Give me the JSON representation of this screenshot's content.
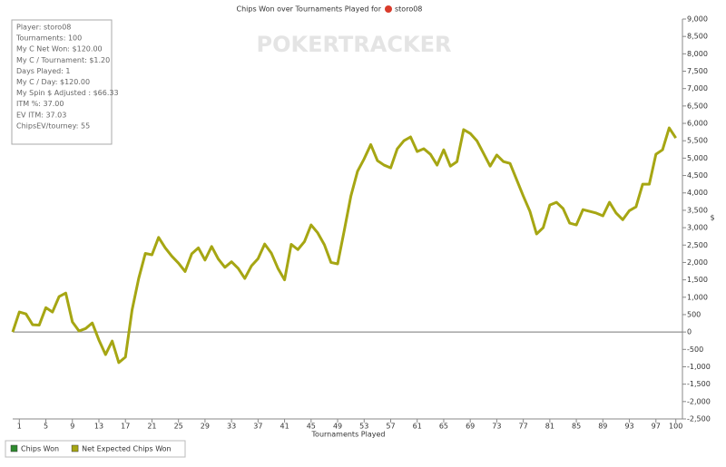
{
  "chart_data": {
    "type": "line",
    "title": "Chips Won over Tournaments Played for",
    "player_tag": "storo08",
    "watermark": "POKERTRACKER",
    "x_label": "Tournaments Played",
    "y_label": "$",
    "info_box": [
      "Player: storo08",
      "Tournaments: 100",
      "My C Net Won: $120.00",
      "My C / Tournament: $1.20",
      "Days Played: 1",
      "My C / Day: $120.00",
      "My Spin $ Adjusted : $66.33",
      "ITM %: 37.00",
      "EV ITM: 37.03",
      "ChipsEV/tourney: 55"
    ],
    "legend_items": [
      {
        "name": "Chips Won",
        "color": "#2e8b2e"
      },
      {
        "name": "Net Expected Chips Won",
        "color": "#a6a613"
      }
    ],
    "x": [
      0,
      1,
      2,
      3,
      4,
      5,
      6,
      7,
      8,
      9,
      10,
      11,
      12,
      13,
      14,
      15,
      16,
      17,
      18,
      19,
      20,
      21,
      22,
      23,
      24,
      25,
      26,
      27,
      28,
      29,
      30,
      31,
      32,
      33,
      34,
      35,
      36,
      37,
      38,
      39,
      40,
      41,
      42,
      43,
      44,
      45,
      46,
      47,
      48,
      49,
      50,
      51,
      52,
      53,
      54,
      55,
      56,
      57,
      58,
      59,
      60,
      61,
      62,
      63,
      64,
      65,
      66,
      67,
      68,
      69,
      70,
      71,
      72,
      73,
      74,
      75,
      76,
      77,
      78,
      79,
      80,
      81,
      82,
      83,
      84,
      85,
      86,
      87,
      88,
      89,
      90,
      91,
      92,
      93,
      94,
      95,
      96,
      97,
      98,
      99,
      100
    ],
    "series": [
      {
        "name": "Net Expected Chips Won",
        "color": "#a6a613",
        "values": [
          0,
          575,
          520,
          210,
          200,
          700,
          575,
          1020,
          1120,
          290,
          30,
          100,
          260,
          -230,
          -650,
          -260,
          -880,
          -720,
          630,
          1540,
          2260,
          2220,
          2720,
          2420,
          2180,
          1980,
          1740,
          2250,
          2420,
          2070,
          2460,
          2100,
          1860,
          2020,
          1830,
          1540,
          1900,
          2110,
          2530,
          2270,
          1830,
          1500,
          2520,
          2370,
          2600,
          3080,
          2850,
          2510,
          2000,
          1960,
          2920,
          3910,
          4620,
          4980,
          5390,
          4930,
          4800,
          4720,
          5270,
          5500,
          5610,
          5190,
          5270,
          5110,
          4800,
          5240,
          4770,
          4900,
          5820,
          5710,
          5500,
          5140,
          4770,
          5090,
          4900,
          4850,
          4380,
          3910,
          3470,
          2820,
          3000,
          3650,
          3730,
          3550,
          3130,
          3080,
          3520,
          3470,
          3420,
          3340,
          3730,
          3420,
          3230,
          3490,
          3600,
          4250,
          4250,
          5110,
          5240,
          5870,
          5580
        ]
      }
    ],
    "xlim": [
      0,
      101
    ],
    "xticks": [
      1,
      5,
      9,
      13,
      17,
      21,
      25,
      29,
      33,
      37,
      41,
      45,
      49,
      53,
      57,
      61,
      65,
      69,
      73,
      77,
      81,
      85,
      89,
      93,
      97,
      100
    ],
    "ylim": [
      -2500,
      9000
    ],
    "yticks": [
      {
        "value": -2500,
        "label": "-2,500"
      },
      {
        "value": -2000,
        "label": "-2,000"
      },
      {
        "value": -1500,
        "label": "-1,500"
      },
      {
        "value": -1000,
        "label": "-1,000"
      },
      -500,
      0,
      500,
      {
        "value": 1000,
        "label": "1,000"
      },
      {
        "value": 1500,
        "label": "1,500"
      },
      {
        "value": 2000,
        "label": "2,000"
      },
      {
        "value": 2500,
        "label": "2,500"
      },
      {
        "value": 3000,
        "label": "3,000"
      },
      {
        "value": 3500,
        "label": "3,500"
      },
      {
        "value": 4000,
        "label": "4,000"
      },
      {
        "value": 4500,
        "label": "4,500"
      },
      {
        "value": 5000,
        "label": "5,000"
      },
      {
        "value": 5500,
        "label": "5,500"
      },
      {
        "value": 6000,
        "label": "6,000"
      },
      {
        "value": 6500,
        "label": "6,500"
      },
      {
        "value": 7000,
        "label": "7,000"
      },
      {
        "value": 7500,
        "label": "7,500"
      },
      {
        "value": 8000,
        "label": "8,000"
      },
      {
        "value": 8500,
        "label": "8,500"
      },
      {
        "value": 9000,
        "label": "9,000"
      }
    ],
    "zero_line": true
  }
}
